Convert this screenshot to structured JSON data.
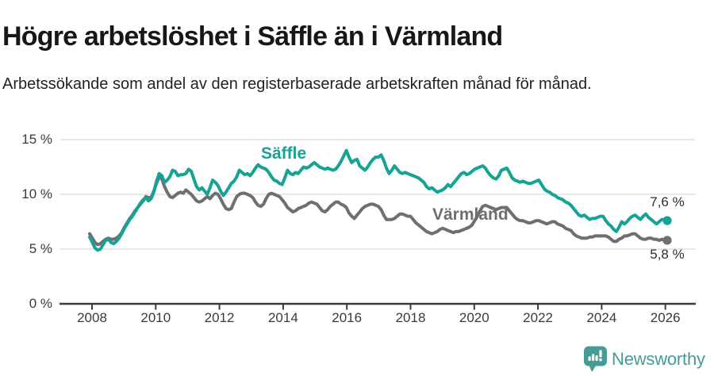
{
  "title": "Högre arbetslöshet i Säffle än i Värmland",
  "subtitle": "Arbetssökande som andel av den registerbaserade arbetskraften månad för månad.",
  "footer": {
    "brand": "Newsworthy",
    "brand_color": "#459C96",
    "logo_icon": "newsworthy-speech-bubble-bar-chart-icon"
  },
  "colors": {
    "saffle_teal": "#16A295",
    "varmland_gray": "#6F6F6F",
    "grid": "#DADADA",
    "axis": "#3C3C3C",
    "tick_text": "#3A3A3A"
  },
  "chart_data": {
    "type": "line",
    "title": "Högre arbetslöshet i Säffle än i Värmland",
    "xlabel": "",
    "ylabel": "Arbetssökande som andel av den registerbaserade arbetskraften",
    "x_unit": "monthly, 2008-01 to 2026-01",
    "ylim": [
      0,
      15
    ],
    "grid": "horizontal",
    "legend_position": "inline-labels",
    "x_ticks": [
      "2008",
      "2010",
      "2012",
      "2014",
      "2016",
      "2018",
      "2020",
      "2022",
      "2024",
      "2026"
    ],
    "y_ticks": [
      {
        "value": 0,
        "label": "0 %"
      },
      {
        "value": 5,
        "label": "5 %"
      },
      {
        "value": 10,
        "label": "10 %"
      },
      {
        "value": 15,
        "label": "15 %"
      }
    ],
    "series": [
      {
        "name": "Värmland",
        "color": "#6F6F6F",
        "end_label": "5,8 %",
        "end_value": 5.8,
        "values": [
          6.4,
          6.0,
          5.6,
          5.4,
          5.5,
          5.7,
          5.9,
          6.0,
          5.9,
          5.9,
          6.0,
          6.2,
          6.5,
          7.0,
          7.4,
          7.8,
          8.1,
          8.5,
          8.8,
          9.1,
          9.4,
          9.8,
          9.7,
          9.7,
          10.3,
          11.0,
          11.6,
          11.4,
          10.7,
          10.2,
          9.8,
          9.7,
          9.9,
          10.1,
          10.2,
          10.1,
          10.4,
          10.2,
          10.0,
          9.7,
          9.4,
          9.3,
          9.4,
          9.6,
          9.8,
          9.6,
          9.9,
          10.1,
          10.0,
          9.6,
          9.1,
          8.7,
          8.6,
          8.7,
          9.3,
          9.8,
          10.0,
          10.1,
          10.1,
          10.0,
          9.9,
          9.7,
          9.3,
          9.0,
          8.9,
          9.1,
          9.6,
          10.0,
          10.1,
          10.0,
          9.9,
          9.8,
          9.5,
          9.2,
          8.8,
          8.6,
          8.4,
          8.5,
          8.7,
          8.8,
          8.9,
          9.0,
          9.2,
          9.3,
          9.2,
          9.1,
          8.8,
          8.5,
          8.4,
          8.6,
          8.9,
          9.1,
          9.3,
          9.3,
          9.1,
          9.0,
          8.8,
          8.3,
          8.0,
          7.8,
          8.1,
          8.4,
          8.7,
          8.9,
          9.0,
          9.1,
          9.1,
          9.0,
          8.9,
          8.6,
          8.1,
          7.7,
          7.7,
          7.7,
          7.8,
          8.0,
          8.2,
          8.2,
          8.1,
          8.0,
          8.0,
          7.7,
          7.4,
          7.2,
          7.0,
          6.8,
          6.6,
          6.5,
          6.4,
          6.5,
          6.6,
          6.8,
          6.9,
          6.8,
          6.7,
          6.6,
          6.5,
          6.6,
          6.6,
          6.7,
          6.8,
          6.9,
          7.0,
          7.2,
          7.6,
          8.0,
          8.5,
          8.9,
          9.0,
          8.9,
          8.8,
          8.7,
          8.6,
          8.7,
          8.8,
          8.8,
          8.8,
          8.5,
          8.2,
          7.9,
          7.7,
          7.6,
          7.6,
          7.5,
          7.4,
          7.4,
          7.5,
          7.6,
          7.6,
          7.5,
          7.4,
          7.3,
          7.4,
          7.5,
          7.5,
          7.3,
          7.2,
          7.1,
          6.9,
          6.8,
          6.7,
          6.4,
          6.2,
          6.1,
          6.0,
          6.0,
          6.0,
          6.1,
          6.1,
          6.2,
          6.2,
          6.2,
          6.2,
          6.2,
          6.1,
          5.9,
          5.7,
          5.7,
          5.9,
          6.0,
          6.2,
          6.2,
          6.3,
          6.4,
          6.4,
          6.2,
          6.0,
          5.9,
          5.9,
          6.0,
          6.0,
          5.9,
          5.9,
          5.8,
          5.9,
          5.8,
          5.8
        ]
      },
      {
        "name": "Säffle",
        "color": "#16A295",
        "end_label": "7,6 %",
        "end_value": 7.6,
        "values": [
          6.1,
          5.6,
          5.1,
          4.9,
          5.0,
          5.4,
          5.8,
          5.9,
          5.6,
          5.5,
          5.7,
          6.0,
          6.4,
          6.9,
          7.3,
          7.7,
          8.0,
          8.4,
          8.8,
          9.2,
          9.5,
          9.7,
          9.4,
          9.6,
          10.2,
          11.2,
          11.9,
          11.7,
          11.1,
          11.3,
          11.6,
          12.2,
          12.1,
          11.7,
          11.8,
          11.8,
          11.9,
          12.3,
          12.1,
          11.4,
          10.7,
          10.4,
          10.6,
          10.3,
          10.0,
          10.6,
          11.3,
          11.1,
          10.8,
          10.3,
          9.9,
          10.2,
          10.6,
          11.0,
          11.2,
          11.6,
          12.2,
          12.0,
          11.8,
          11.9,
          11.7,
          12.0,
          12.4,
          12.7,
          12.5,
          12.4,
          12.3,
          12.0,
          11.6,
          11.3,
          11.2,
          11.0,
          10.9,
          11.5,
          12.2,
          11.9,
          11.8,
          12.0,
          11.9,
          12.2,
          12.5,
          12.4,
          12.5,
          12.7,
          12.9,
          12.7,
          12.5,
          12.4,
          12.3,
          12.4,
          12.3,
          12.2,
          12.3,
          12.6,
          13.0,
          13.5,
          14.0,
          13.4,
          12.9,
          13.1,
          13.2,
          12.6,
          12.4,
          12.2,
          12.5,
          12.9,
          13.2,
          13.4,
          13.4,
          13.6,
          13.1,
          12.4,
          11.9,
          12.2,
          12.6,
          12.3,
          12.0,
          11.9,
          12.0,
          11.9,
          11.8,
          11.7,
          11.6,
          11.5,
          11.3,
          11.1,
          10.7,
          10.5,
          10.6,
          10.4,
          10.2,
          10.3,
          10.4,
          10.6,
          10.9,
          10.7,
          11.0,
          11.3,
          11.6,
          11.9,
          12.0,
          11.8,
          11.9,
          12.1,
          12.3,
          12.4,
          12.5,
          12.6,
          12.4,
          12.0,
          11.7,
          11.5,
          11.4,
          11.7,
          12.2,
          12.3,
          12.4,
          12.0,
          11.5,
          11.3,
          11.2,
          11.1,
          11.2,
          11.1,
          11.0,
          11.0,
          11.1,
          11.2,
          11.3,
          10.9,
          10.5,
          10.3,
          10.2,
          10.0,
          9.9,
          9.7,
          9.6,
          9.5,
          9.3,
          9.2,
          9.0,
          8.7,
          8.4,
          8.1,
          8.0,
          8.1,
          7.9,
          7.7,
          7.8,
          7.8,
          7.9,
          8.0,
          8.0,
          7.6,
          7.3,
          7.1,
          6.8,
          6.6,
          7.0,
          7.5,
          7.3,
          7.5,
          7.8,
          8.0,
          8.1,
          7.9,
          7.7,
          8.0,
          8.2,
          7.9,
          7.7,
          7.5,
          7.3,
          7.5,
          7.7,
          7.7,
          7.6
        ]
      }
    ]
  }
}
